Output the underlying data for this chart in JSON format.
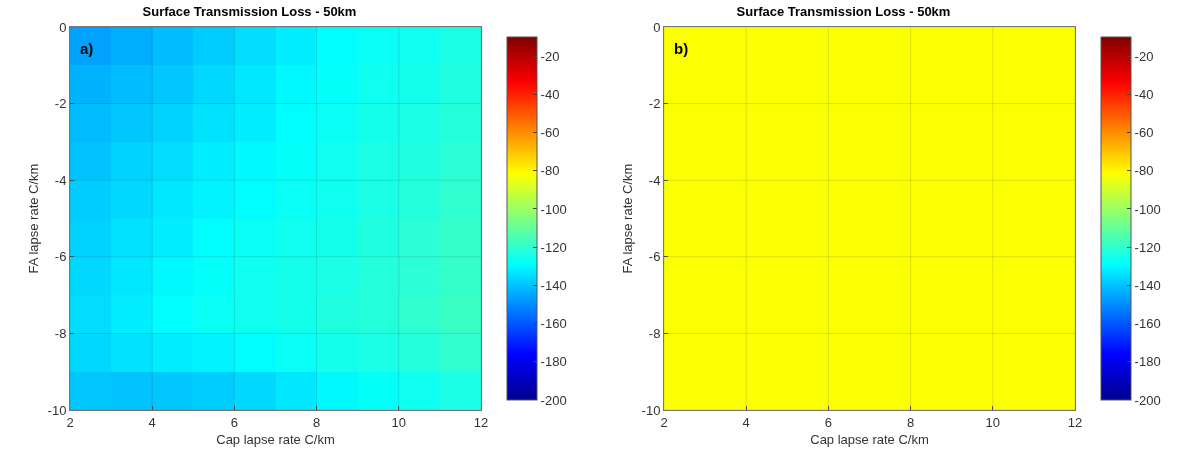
{
  "chart_data": [
    {
      "type": "heatmap",
      "title": "Surface Transmission Loss - 50km",
      "xlabel": "Cap lapse rate C/km",
      "ylabel": "FA lapse rate C/km",
      "x": [
        2.5,
        3.5,
        4.5,
        5.5,
        6.5,
        7.5,
        8.5,
        9.5,
        10.5,
        11.5
      ],
      "y": [
        -0.5,
        -1.5,
        -2.5,
        -3.5,
        -4.5,
        -5.5,
        -6.5,
        -7.5,
        -8.5,
        -9.5
      ],
      "cells": [
        [
          -146,
          -144,
          -141,
          -138,
          -135,
          -132,
          -129,
          -127,
          -126,
          -124
        ],
        [
          -143,
          -141,
          -139,
          -136,
          -133,
          -130,
          -128,
          -126,
          -125,
          -123
        ],
        [
          -141,
          -139,
          -137,
          -134,
          -132,
          -129,
          -127,
          -125,
          -124,
          -122
        ],
        [
          -140,
          -137,
          -135,
          -132,
          -130,
          -128,
          -126,
          -124,
          -123,
          -121
        ],
        [
          -138,
          -136,
          -133,
          -131,
          -129,
          -127,
          -126,
          -124,
          -122,
          -120
        ],
        [
          -137,
          -134,
          -132,
          -129,
          -127,
          -126,
          -125,
          -123,
          -121,
          -119
        ],
        [
          -136,
          -133,
          -130,
          -128,
          -126,
          -125,
          -124,
          -122,
          -121,
          -119
        ],
        [
          -135,
          -132,
          -129,
          -127,
          -126,
          -125,
          -123,
          -122,
          -120,
          -118
        ],
        [
          -136,
          -134,
          -132,
          -131,
          -129,
          -127,
          -125,
          -124,
          -122,
          -120
        ],
        [
          -139,
          -140,
          -139,
          -138,
          -136,
          -133,
          -130,
          -128,
          -126,
          -124
        ]
      ],
      "xlim": [
        2,
        12
      ],
      "ylim": [
        -10,
        0
      ],
      "xticks": [
        2,
        4,
        6,
        8,
        10,
        12
      ],
      "yticks": [
        -10,
        -8,
        -6,
        -4,
        -2,
        0
      ],
      "clim": [
        -200,
        -10
      ],
      "cticks": [
        -200,
        -180,
        -160,
        -140,
        -120,
        -100,
        -80,
        -60,
        -40,
        -20
      ],
      "grid": true,
      "annotations": [
        "a)"
      ]
    },
    {
      "type": "heatmap",
      "title": "Surface Transmission Loss - 50km",
      "xlabel": "Cap lapse rate C/km",
      "ylabel": "FA lapse rate C/km",
      "x": [
        3,
        5,
        7,
        9,
        11
      ],
      "y": [
        -1,
        -3,
        -5,
        -7,
        -9
      ],
      "cells": [
        [
          -82,
          -82,
          -82,
          -82,
          -82
        ],
        [
          -82,
          -82,
          -82,
          -82,
          -82
        ],
        [
          -82,
          -82,
          -82,
          -82,
          -82
        ],
        [
          -82,
          -82,
          -82,
          -82,
          -82
        ],
        [
          -82,
          -82,
          -82,
          -82,
          -82
        ]
      ],
      "xlim": [
        2,
        12
      ],
      "ylim": [
        -10,
        0
      ],
      "xticks": [
        2,
        4,
        6,
        8,
        10,
        12
      ],
      "yticks": [
        -10,
        -8,
        -6,
        -4,
        -2,
        0
      ],
      "clim": [
        -200,
        -10
      ],
      "cticks": [
        -200,
        -180,
        -160,
        -140,
        -120,
        -100,
        -80,
        -60,
        -40,
        -20
      ],
      "grid": true,
      "annotations": [
        "b)"
      ]
    }
  ]
}
